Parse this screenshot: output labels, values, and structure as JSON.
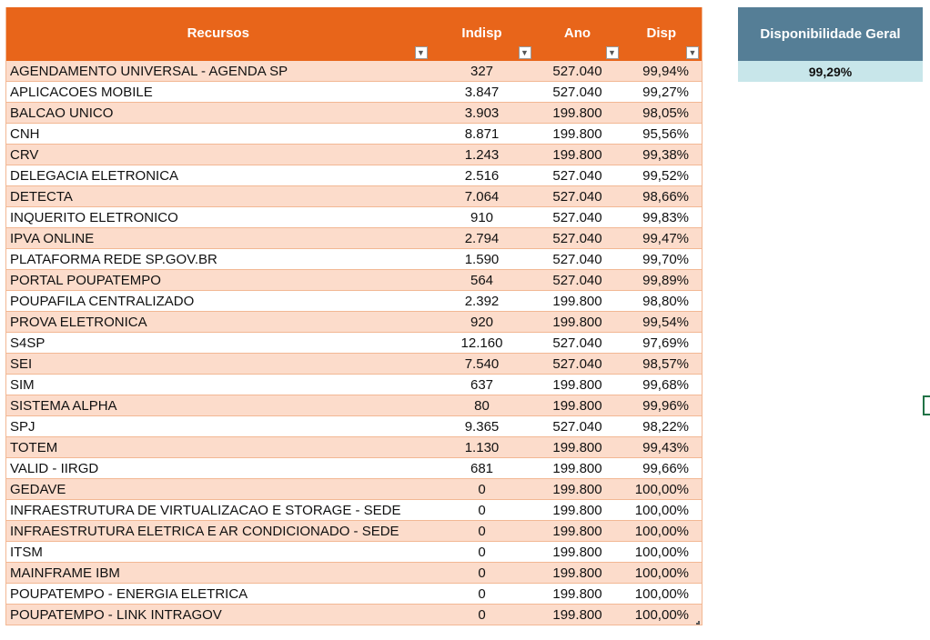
{
  "table": {
    "headers": {
      "recursos": "Recursos",
      "indisp": "Indisp",
      "ano": "Ano",
      "disp": "Disp"
    },
    "filter_icon": "dropdown-arrow-icon",
    "rows": [
      {
        "recurso": "AGENDAMENTO UNIVERSAL - AGENDA SP",
        "indisp": "327",
        "ano": "527.040",
        "disp": "99,94%"
      },
      {
        "recurso": "APLICACOES MOBILE",
        "indisp": "3.847",
        "ano": "527.040",
        "disp": "99,27%"
      },
      {
        "recurso": "BALCAO UNICO",
        "indisp": "3.903",
        "ano": "199.800",
        "disp": "98,05%"
      },
      {
        "recurso": "CNH",
        "indisp": "8.871",
        "ano": "199.800",
        "disp": "95,56%"
      },
      {
        "recurso": "CRV",
        "indisp": "1.243",
        "ano": "199.800",
        "disp": "99,38%"
      },
      {
        "recurso": "DELEGACIA ELETRONICA",
        "indisp": "2.516",
        "ano": "527.040",
        "disp": "99,52%"
      },
      {
        "recurso": "DETECTA",
        "indisp": "7.064",
        "ano": "527.040",
        "disp": "98,66%"
      },
      {
        "recurso": "INQUERITO ELETRONICO",
        "indisp": "910",
        "ano": "527.040",
        "disp": "99,83%"
      },
      {
        "recurso": "IPVA ONLINE",
        "indisp": "2.794",
        "ano": "527.040",
        "disp": "99,47%"
      },
      {
        "recurso": "PLATAFORMA REDE SP.GOV.BR",
        "indisp": "1.590",
        "ano": "527.040",
        "disp": "99,70%"
      },
      {
        "recurso": "PORTAL POUPATEMPO",
        "indisp": "564",
        "ano": "527.040",
        "disp": "99,89%"
      },
      {
        "recurso": "POUPAFILA CENTRALIZADO",
        "indisp": "2.392",
        "ano": "199.800",
        "disp": "98,80%"
      },
      {
        "recurso": "PROVA ELETRONICA",
        "indisp": "920",
        "ano": "199.800",
        "disp": "99,54%"
      },
      {
        "recurso": "S4SP",
        "indisp": "12.160",
        "ano": "527.040",
        "disp": "97,69%"
      },
      {
        "recurso": "SEI",
        "indisp": "7.540",
        "ano": "527.040",
        "disp": "98,57%"
      },
      {
        "recurso": "SIM",
        "indisp": "637",
        "ano": "199.800",
        "disp": "99,68%"
      },
      {
        "recurso": "SISTEMA ALPHA",
        "indisp": "80",
        "ano": "199.800",
        "disp": "99,96%"
      },
      {
        "recurso": "SPJ",
        "indisp": "9.365",
        "ano": "527.040",
        "disp": "98,22%"
      },
      {
        "recurso": "TOTEM",
        "indisp": "1.130",
        "ano": "199.800",
        "disp": "99,43%"
      },
      {
        "recurso": "VALID - IIRGD",
        "indisp": "681",
        "ano": "199.800",
        "disp": "99,66%"
      },
      {
        "recurso": "GEDAVE",
        "indisp": "0",
        "ano": "199.800",
        "disp": "100,00%"
      },
      {
        "recurso": "INFRAESTRUTURA DE VIRTUALIZACAO E STORAGE - SEDE",
        "indisp": "0",
        "ano": "199.800",
        "disp": "100,00%"
      },
      {
        "recurso": "INFRAESTRUTURA ELETRICA E AR CONDICIONADO - SEDE",
        "indisp": "0",
        "ano": "199.800",
        "disp": "100,00%"
      },
      {
        "recurso": "ITSM",
        "indisp": "0",
        "ano": "199.800",
        "disp": "100,00%"
      },
      {
        "recurso": "MAINFRAME IBM",
        "indisp": "0",
        "ano": "199.800",
        "disp": "100,00%"
      },
      {
        "recurso": "POUPATEMPO - ENERGIA ELETRICA",
        "indisp": "0",
        "ano": "199.800",
        "disp": "100,00%"
      },
      {
        "recurso": "POUPATEMPO - LINK INTRAGOV",
        "indisp": "0",
        "ano": "199.800",
        "disp": "100,00%"
      }
    ]
  },
  "summary": {
    "header": "Disponibilidade Geral",
    "value": "99,29%"
  },
  "colors": {
    "header_bg": "#E8651A",
    "band_row_bg": "#FCDCCB",
    "summary_header_bg": "#557E96",
    "summary_value_bg": "#C8E6EA",
    "selection_border": "#217346"
  }
}
